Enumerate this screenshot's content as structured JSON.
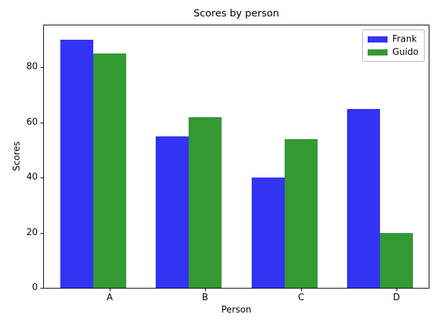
{
  "chart_data": {
    "type": "bar",
    "title": "Scores by person",
    "xlabel": "Person",
    "ylabel": "Scores",
    "categories": [
      "A",
      "B",
      "C",
      "D"
    ],
    "series": [
      {
        "name": "Frank",
        "color": "#3333f3",
        "values": [
          90,
          55,
          40,
          65
        ]
      },
      {
        "name": "Guido",
        "color": "#339933",
        "values": [
          85,
          62,
          54,
          20
        ]
      }
    ],
    "yticks": [
      0,
      20,
      40,
      60,
      80
    ],
    "ylim": [
      0,
      94.5
    ],
    "grid": false,
    "legend_position": "upper right"
  }
}
